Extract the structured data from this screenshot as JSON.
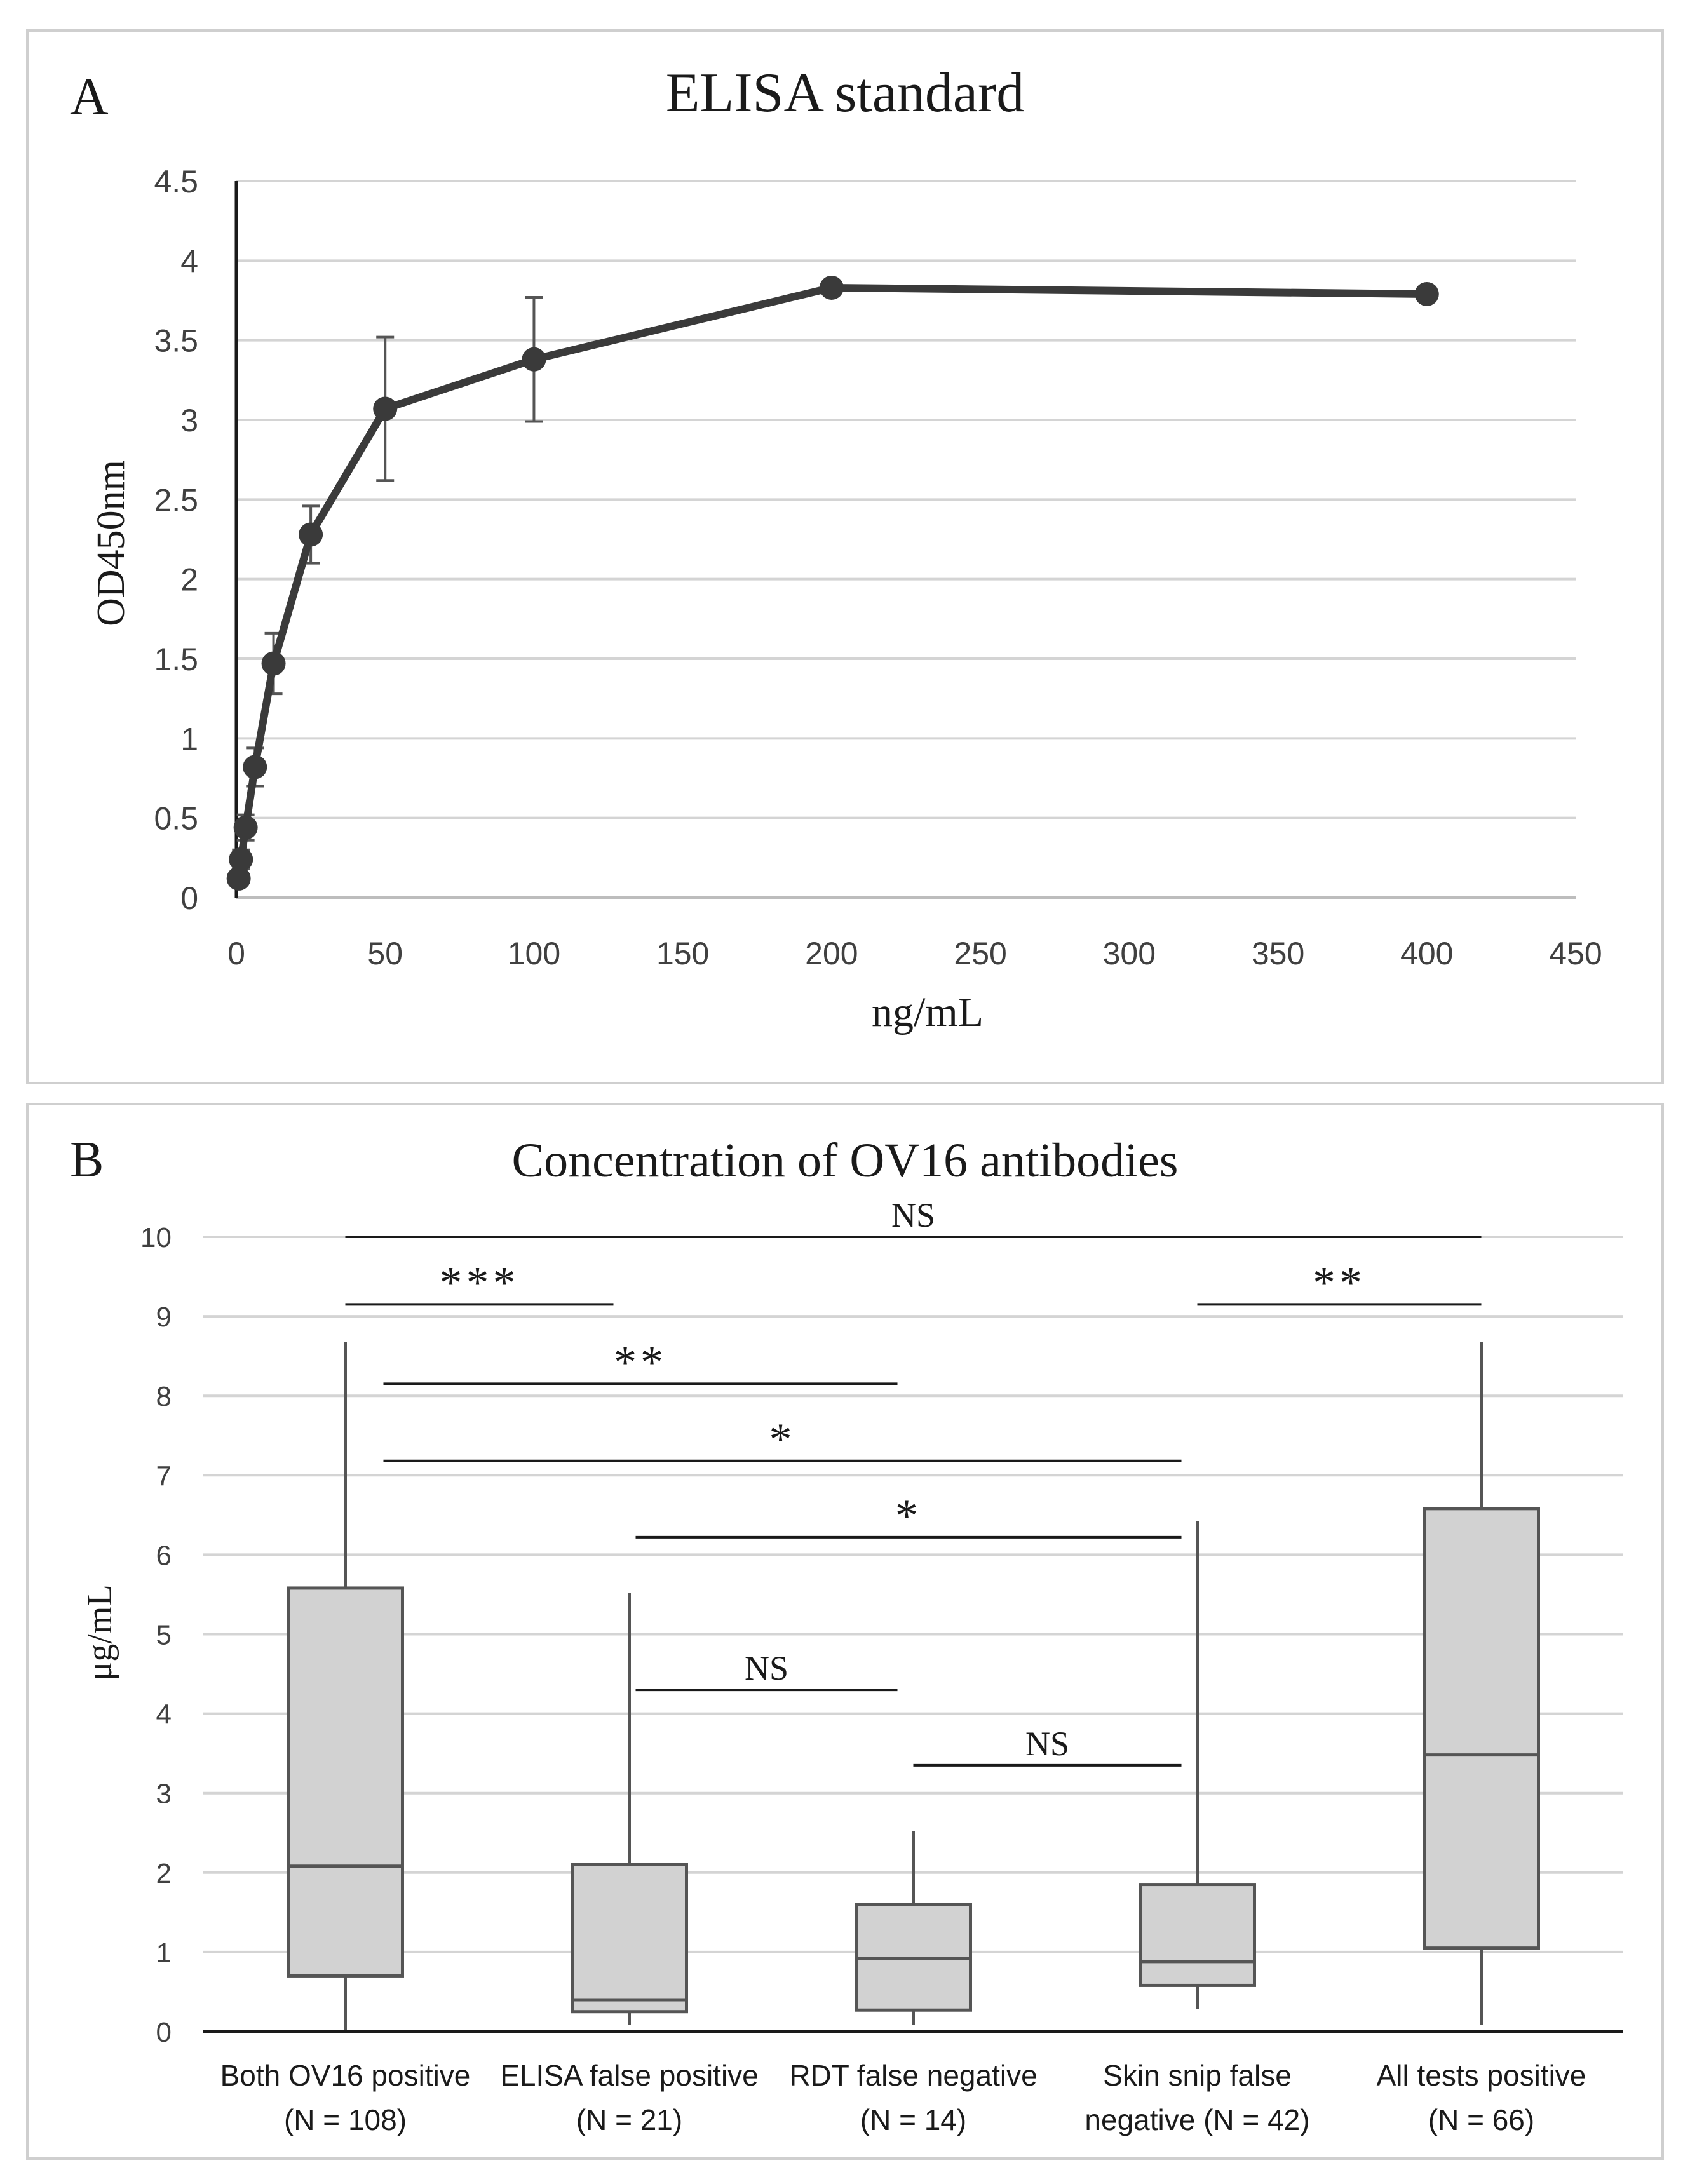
{
  "colors": {
    "line": "#3a3a3a",
    "grid": "#d4d4d4",
    "axis": "#1a1a1a",
    "box_fill": "#d2d2d2",
    "box_stroke": "#555555",
    "panel_border": "#cfcfcf",
    "tick_text": "#404040",
    "title_text": "#1a1a1a"
  },
  "chart_data": [
    {
      "panel": "A",
      "type": "line",
      "title": "ELISA standard",
      "xlabel": "ng/mL",
      "ylabel": "OD450nm",
      "xlim": [
        0,
        450
      ],
      "ylim": [
        0,
        4.5
      ],
      "xticks": [
        0,
        50,
        100,
        150,
        200,
        250,
        300,
        350,
        400,
        450
      ],
      "yticks": [
        0,
        0.5,
        1,
        1.5,
        2,
        2.5,
        3,
        3.5,
        4,
        4.5
      ],
      "ytick_labels": [
        "0",
        "0.5",
        "1",
        "1.5",
        "2",
        "2.5",
        "3",
        "3.5",
        "4",
        "4.5"
      ],
      "grid": true,
      "series": [
        {
          "name": "OD450nm",
          "x": [
            0.78,
            1.56,
            3.125,
            6.25,
            12.5,
            25,
            50,
            100,
            200,
            400
          ],
          "y": [
            0.12,
            0.24,
            0.44,
            0.82,
            1.47,
            2.28,
            3.07,
            3.38,
            3.83,
            3.79
          ],
          "err": [
            0.03,
            0.06,
            0.08,
            0.12,
            0.19,
            0.18,
            0.45,
            0.39,
            0.03,
            0.03
          ]
        }
      ]
    },
    {
      "panel": "B",
      "type": "boxplot",
      "title": "Concentration  of OV16  antibodies",
      "ylabel": "μg/mL",
      "ylim": [
        0,
        10
      ],
      "yticks": [
        0,
        1,
        2,
        3,
        4,
        5,
        6,
        7,
        8,
        9,
        10
      ],
      "grid": true,
      "categories": [
        {
          "line1": "Both OV16 positive",
          "line2": "(N = 108)"
        },
        {
          "line1": "ELISA false positive",
          "line2": "(N = 21)"
        },
        {
          "line1": "RDT false negative",
          "line2": "(N = 14)"
        },
        {
          "line1": "Skin snip false",
          "line2": "negative  (N = 42)"
        },
        {
          "line1": "All tests positive",
          "line2": "(N = 66)"
        }
      ],
      "boxes": [
        {
          "min": 0.02,
          "q1": 0.7,
          "median": 2.08,
          "q3": 5.58,
          "max": 8.68
        },
        {
          "min": 0.08,
          "q1": 0.25,
          "median": 0.4,
          "q3": 2.1,
          "max": 5.52
        },
        {
          "min": 0.08,
          "q1": 0.27,
          "median": 0.92,
          "q3": 1.6,
          "max": 2.52
        },
        {
          "min": 0.28,
          "q1": 0.58,
          "median": 0.88,
          "q3": 1.85,
          "max": 6.42
        },
        {
          "min": 0.08,
          "q1": 1.05,
          "median": 3.48,
          "q3": 6.58,
          "max": 8.68
        }
      ],
      "comparisons": [
        {
          "from": 0,
          "to": 4,
          "label": "NS",
          "y": 10.0
        },
        {
          "from": 0,
          "to": 1,
          "label": "***",
          "y": 9.15
        },
        {
          "from": 3,
          "to": 4,
          "label": "**",
          "y": 9.15
        },
        {
          "from": 0,
          "to": 2,
          "label": "**",
          "y": 8.15
        },
        {
          "from": 0,
          "to": 3,
          "label": "*",
          "y": 7.18
        },
        {
          "from": 1,
          "to": 3,
          "label": "*",
          "y": 6.22
        },
        {
          "from": 1,
          "to": 2,
          "label": "NS",
          "y": 4.3
        },
        {
          "from": 2,
          "to": 3,
          "label": "NS",
          "y": 3.35
        }
      ]
    }
  ]
}
